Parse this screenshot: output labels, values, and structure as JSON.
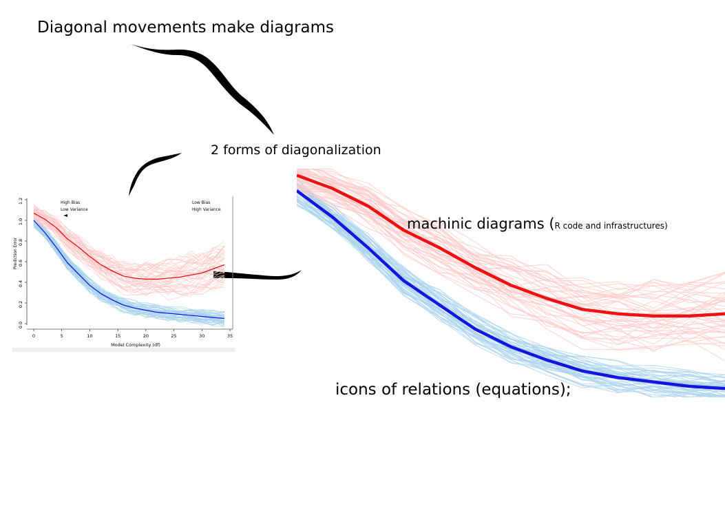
{
  "slide": {
    "title": "Diagonal movements make diagrams",
    "subtitle": "2 forms of diagonalization",
    "machinic_main": "machinic diagrams (",
    "machinic_small": "R code and infrastructures)",
    "icons_text": "icons of relations (equations);"
  },
  "small_chart": {
    "ylabel": "Prediction Error",
    "xlabel": "Model Complexity (df)",
    "annot_left_1": "High Bias",
    "annot_left_2": "Low Variance",
    "annot_right_1": "Low Bias",
    "annot_right_2": "High Variance"
  },
  "colors": {
    "test_mean": "#ee1111",
    "train_mean": "#1515dd",
    "test_samples": "#ffc8c8",
    "train_samples": "#a9d3ee"
  },
  "chart_data": {
    "type": "line",
    "xlabel": "Model Complexity (df)",
    "ylabel": "Prediction Error",
    "xlim": [
      0,
      35
    ],
    "ylim": [
      0,
      1.2
    ],
    "xticks": [
      0,
      5,
      10,
      15,
      20,
      25,
      30,
      35
    ],
    "yticks": [
      0.0,
      0.2,
      0.4,
      0.6,
      0.8,
      1.0,
      1.2
    ],
    "x": [
      0,
      2,
      4,
      6,
      8,
      10,
      12,
      14,
      16,
      18,
      20,
      22,
      24,
      26,
      28,
      30,
      32,
      34
    ],
    "series": [
      {
        "role": "test",
        "values": [
          1.07,
          1.01,
          0.93,
          0.82,
          0.74,
          0.65,
          0.57,
          0.51,
          0.46,
          0.44,
          0.43,
          0.43,
          0.44,
          0.45,
          0.47,
          0.49,
          0.53,
          0.57
        ]
      },
      {
        "role": "train",
        "values": [
          1.0,
          0.88,
          0.74,
          0.59,
          0.48,
          0.37,
          0.29,
          0.23,
          0.18,
          0.15,
          0.13,
          0.11,
          0.1,
          0.09,
          0.08,
          0.07,
          0.06,
          0.05
        ]
      }
    ],
    "annotations": [
      "High Bias",
      "Low Variance",
      "Low Bias",
      "High Variance"
    ]
  }
}
